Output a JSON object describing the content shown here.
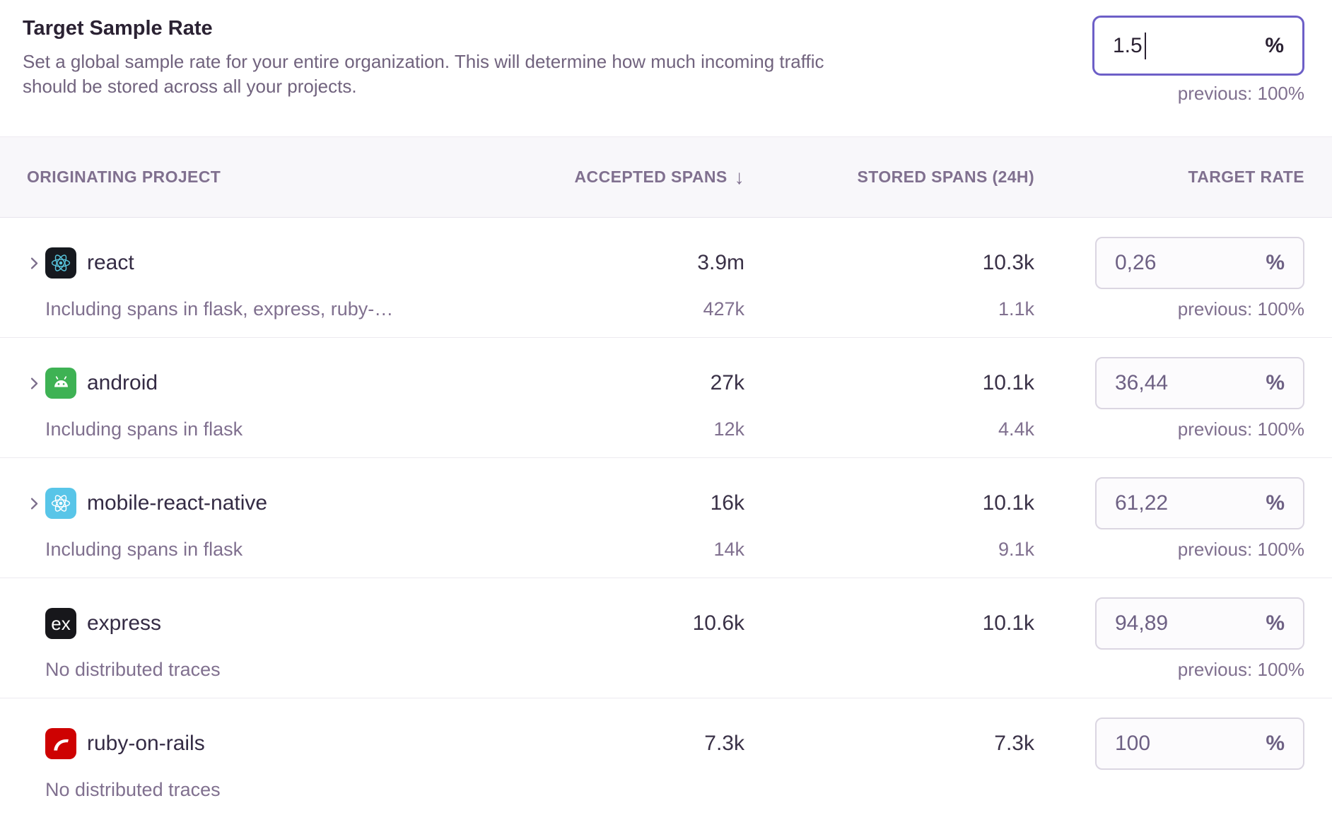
{
  "panel": {
    "title": "Target Sample Rate",
    "description": "Set a global sample rate for your entire organization. This will determine how much incoming traffic should be stored across all your projects.",
    "rate_input": {
      "value": "1.5",
      "unit": "%",
      "previous_label": "previous: 100%"
    }
  },
  "table": {
    "headers": {
      "project": "ORIGINATING PROJECT",
      "accepted": "ACCEPTED SPANS",
      "sort_icon": "↓",
      "stored": "STORED SPANS (24H)",
      "rate": "TARGET RATE"
    },
    "rows": [
      {
        "expandable": true,
        "icon": "react-icon",
        "icon_bg": "#16191F",
        "icon_fg": "#58C4DC",
        "name": "react",
        "subtext": "Including spans in flask, express, ruby-…",
        "accepted": "3.9m",
        "accepted_sub": "427k",
        "stored": "10.3k",
        "stored_sub": "1.1k",
        "rate_value": "0,26",
        "rate_unit": "%",
        "previous_label": "previous: 100%"
      },
      {
        "expandable": true,
        "icon": "android-icon",
        "icon_bg": "#3EB254",
        "icon_fg": "#FFFFFF",
        "name": "android",
        "subtext": "Including spans in flask",
        "accepted": "27k",
        "accepted_sub": "12k",
        "stored": "10.1k",
        "stored_sub": "4.4k",
        "rate_value": "36,44",
        "rate_unit": "%",
        "previous_label": "previous: 100%"
      },
      {
        "expandable": true,
        "icon": "react-native-icon",
        "icon_bg": "#58C5E8",
        "icon_fg": "#FFFFFF",
        "name": "mobile-react-native",
        "subtext": "Including spans in flask",
        "accepted": "16k",
        "accepted_sub": "14k",
        "stored": "10.1k",
        "stored_sub": "9.1k",
        "rate_value": "61,22",
        "rate_unit": "%",
        "previous_label": "previous: 100%"
      },
      {
        "expandable": false,
        "icon": "express-icon",
        "icon_bg": "#17171B",
        "icon_fg": "#FFFFFF",
        "name": "express",
        "subtext": "No distributed traces",
        "accepted": "10.6k",
        "stored": "10.1k",
        "rate_value": "94,89",
        "rate_unit": "%",
        "previous_label": "previous: 100%"
      },
      {
        "expandable": false,
        "icon": "ruby-on-rails-icon",
        "icon_bg": "#CE0202",
        "icon_fg": "#FFFFFF",
        "name": "ruby-on-rails",
        "subtext": "No distributed traces",
        "accepted": "7.3k",
        "stored": "7.3k",
        "rate_value": "100",
        "rate_unit": "%"
      }
    ]
  },
  "colors": {
    "accent": "#6D5FC7",
    "header_text": "#80708F",
    "muted_text": "#71637E",
    "dark_text": "#2B2233"
  }
}
